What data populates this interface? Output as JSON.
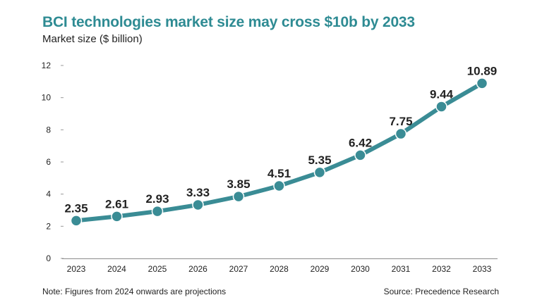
{
  "title": "BCI technologies market size may cross $10b by 2033",
  "subtitle": "Market size ($ billion)",
  "note": "Note: Figures from 2024 onwards are projections",
  "source": "Source: Precedence Research",
  "colors": {
    "title": "#2e8b93",
    "line": "#3a8c95",
    "marker": "#3a8c95",
    "text": "#222222"
  },
  "chart_data": {
    "type": "line",
    "categories": [
      "2023",
      "2024",
      "2025",
      "2026",
      "2027",
      "2028",
      "2029",
      "2030",
      "2031",
      "2032",
      "2033"
    ],
    "values": [
      2.35,
      2.61,
      2.93,
      3.33,
      3.85,
      4.51,
      5.35,
      6.42,
      7.75,
      9.44,
      10.89
    ],
    "value_labels": [
      "2.35",
      "2.61",
      "2.93",
      "3.33",
      "3.85",
      "4.51",
      "5.35",
      "6.42",
      "7.75",
      "9.44",
      "10.89"
    ],
    "yticks": [
      0,
      2,
      4,
      6,
      8,
      10,
      12
    ],
    "ylim": [
      0,
      12
    ],
    "grid": false,
    "legend": "none",
    "title": "BCI technologies market size may cross $10b by 2033",
    "ylabel": "Market size ($ billion)",
    "xlabel": ""
  }
}
